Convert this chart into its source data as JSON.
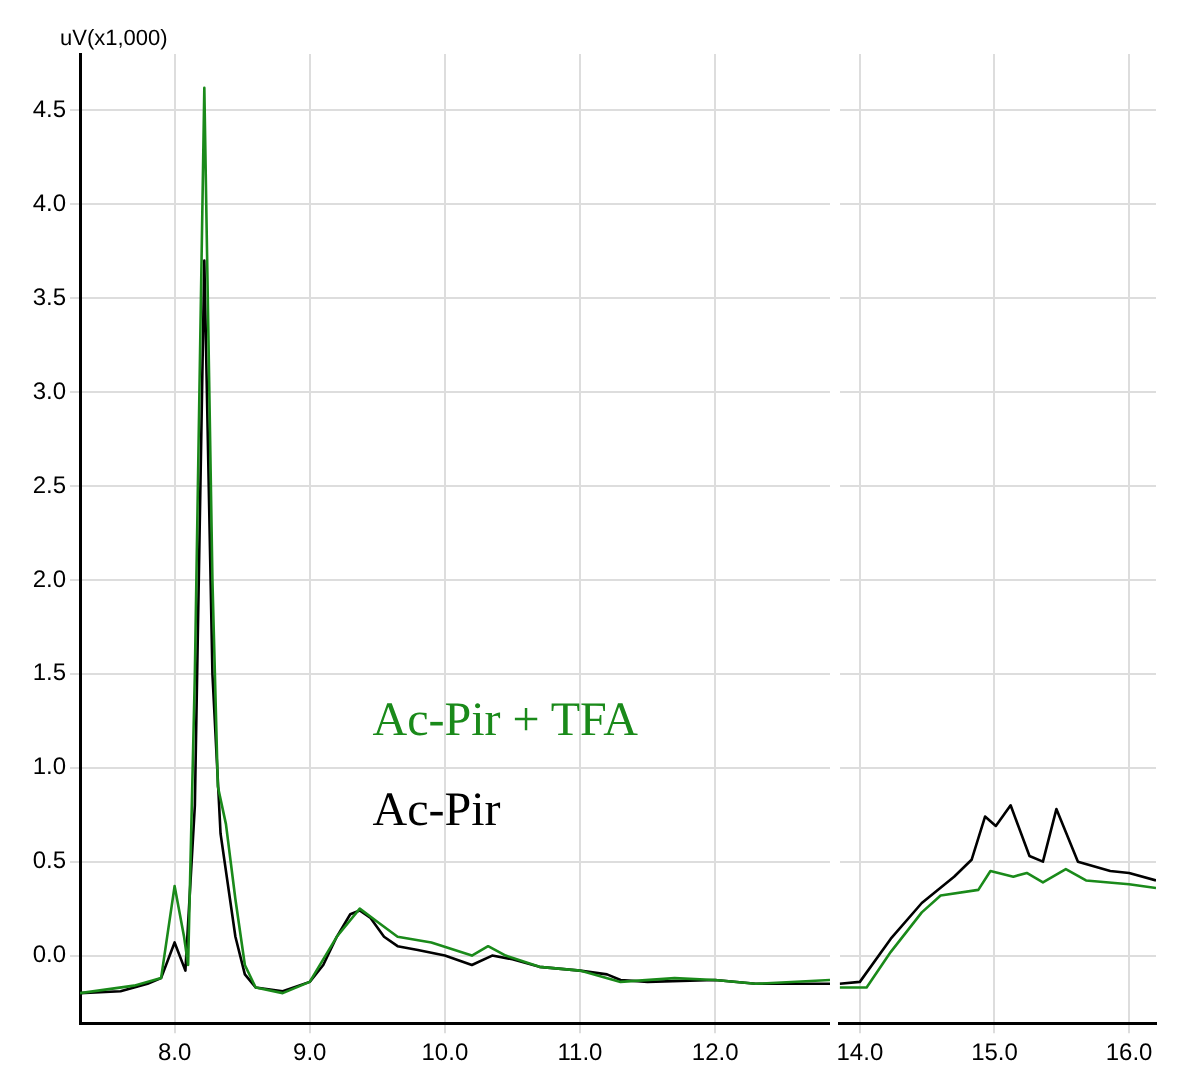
{
  "chart_data": [
    {
      "type": "line",
      "ylabel": "uV(x1,000)",
      "xlim": [
        7.3,
        12.85
      ],
      "ylim": [
        -0.36,
        4.8
      ],
      "grid": true,
      "xticks": [
        {
          "value": 8,
          "label": "8.0"
        },
        {
          "value": 9,
          "label": "9.0"
        },
        {
          "value": 10,
          "label": "10.0"
        },
        {
          "value": 11,
          "label": "11.0"
        },
        {
          "value": 12,
          "label": "12.0"
        }
      ],
      "yticks": [
        {
          "value": 0,
          "label": "0.0"
        },
        {
          "value": 0.5,
          "label": "0.5"
        },
        {
          "value": 1,
          "label": "1.0"
        },
        {
          "value": 1.5,
          "label": "1.5"
        },
        {
          "value": 2,
          "label": "2.0"
        },
        {
          "value": 2.5,
          "label": "2.5"
        },
        {
          "value": 3,
          "label": "3.0"
        },
        {
          "value": 3.5,
          "label": "3.5"
        },
        {
          "value": 4,
          "label": "4.0"
        },
        {
          "value": 4.5,
          "label": "4.5"
        }
      ],
      "series": [
        {
          "name": "Ac-Pir + TFA",
          "color": "#1a8a1a",
          "x": [
            7.3,
            7.7,
            7.9,
            8.0,
            8.07,
            8.1,
            8.15,
            8.22,
            8.28,
            8.32,
            8.38,
            8.45,
            8.52,
            8.6,
            8.8,
            9.0,
            9.2,
            9.37,
            9.5,
            9.65,
            9.9,
            10.2,
            10.32,
            10.45,
            10.7,
            11.0,
            11.3,
            11.7,
            12.0,
            12.3,
            12.85
          ],
          "values": [
            -0.2,
            -0.16,
            -0.12,
            0.37,
            0.1,
            -0.05,
            1.5,
            4.62,
            2.0,
            0.9,
            0.7,
            0.3,
            -0.05,
            -0.17,
            -0.2,
            -0.14,
            0.1,
            0.25,
            0.18,
            0.1,
            0.07,
            0.0,
            0.05,
            0.0,
            -0.06,
            -0.08,
            -0.14,
            -0.12,
            -0.13,
            -0.15,
            -0.13
          ]
        },
        {
          "name": "Ac-Pir",
          "color": "#000000",
          "x": [
            7.3,
            7.6,
            7.8,
            7.9,
            8.0,
            8.08,
            8.15,
            8.22,
            8.28,
            8.34,
            8.45,
            8.52,
            8.6,
            8.8,
            9.0,
            9.1,
            9.2,
            9.3,
            9.37,
            9.45,
            9.55,
            9.65,
            9.8,
            10.0,
            10.2,
            10.35,
            10.5,
            10.7,
            11.0,
            11.2,
            11.3,
            11.5,
            12.0,
            12.3,
            12.85
          ],
          "values": [
            -0.2,
            -0.19,
            -0.15,
            -0.12,
            0.07,
            -0.08,
            0.8,
            3.7,
            1.5,
            0.65,
            0.1,
            -0.1,
            -0.17,
            -0.19,
            -0.14,
            -0.05,
            0.1,
            0.22,
            0.24,
            0.2,
            0.1,
            0.05,
            0.03,
            0.0,
            -0.05,
            0.0,
            -0.02,
            -0.06,
            -0.08,
            -0.1,
            -0.13,
            -0.14,
            -0.13,
            -0.15,
            -0.15
          ]
        }
      ]
    },
    {
      "type": "line",
      "xlim": [
        13.85,
        16.2
      ],
      "ylim": [
        -0.36,
        4.8
      ],
      "grid": true,
      "tick_labels": "x",
      "xticks": [
        {
          "value": 14,
          "label": "14.0"
        },
        {
          "value": 15,
          "label": "15.0"
        },
        {
          "value": 16,
          "label": "16.0"
        }
      ],
      "yticks": [
        0,
        0.5,
        1,
        1.5,
        2,
        2.5,
        3,
        3.5,
        4,
        4.5
      ],
      "series": [
        {
          "color": "#1a8a1a",
          "x": [
            13.85,
            14.05,
            14.23,
            14.46,
            14.6,
            14.88,
            14.97,
            15.14,
            15.24,
            15.36,
            15.53,
            15.68,
            16.0,
            16.2
          ],
          "values": [
            -0.17,
            -0.17,
            0.02,
            0.23,
            0.32,
            0.35,
            0.45,
            0.42,
            0.44,
            0.39,
            0.46,
            0.4,
            0.38,
            0.36
          ]
        },
        {
          "color": "#000000",
          "x": [
            13.85,
            14.0,
            14.23,
            14.46,
            14.7,
            14.83,
            14.93,
            15.01,
            15.12,
            15.26,
            15.36,
            15.46,
            15.62,
            15.86,
            16.0,
            16.2
          ],
          "values": [
            -0.15,
            -0.14,
            0.09,
            0.28,
            0.42,
            0.51,
            0.74,
            0.69,
            0.8,
            0.53,
            0.5,
            0.78,
            0.5,
            0.45,
            0.44,
            0.4
          ]
        }
      ]
    }
  ]
}
